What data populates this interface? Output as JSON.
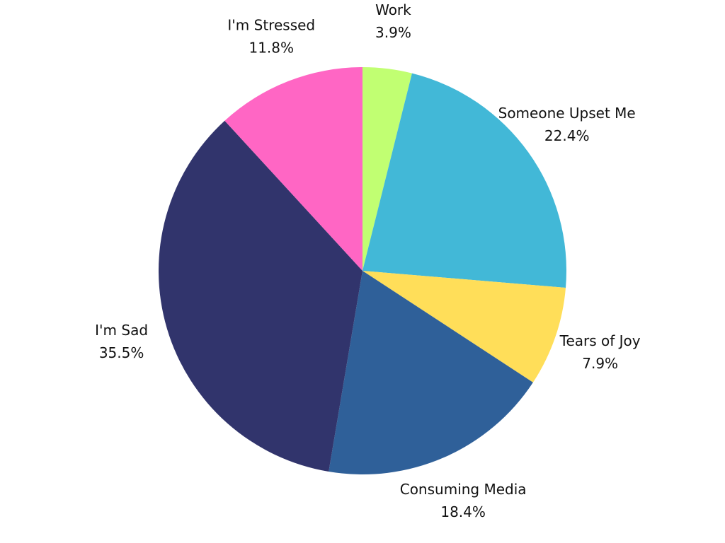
{
  "chart_data": {
    "type": "pie",
    "categories": [
      "Work",
      "Someone Upset Me",
      "Tears of Joy",
      "Consuming Media",
      "I'm Sad",
      "I'm Stressed"
    ],
    "values": [
      3.9,
      22.4,
      7.9,
      18.4,
      35.5,
      11.8
    ],
    "value_labels": [
      "3.9%",
      "22.4%",
      "7.9%",
      "18.4%",
      "35.5%",
      "11.8%"
    ],
    "colors": [
      "#c1ff72",
      "#42b8d7",
      "#ffde59",
      "#2f6099",
      "#31346c",
      "#ff66c4"
    ]
  }
}
